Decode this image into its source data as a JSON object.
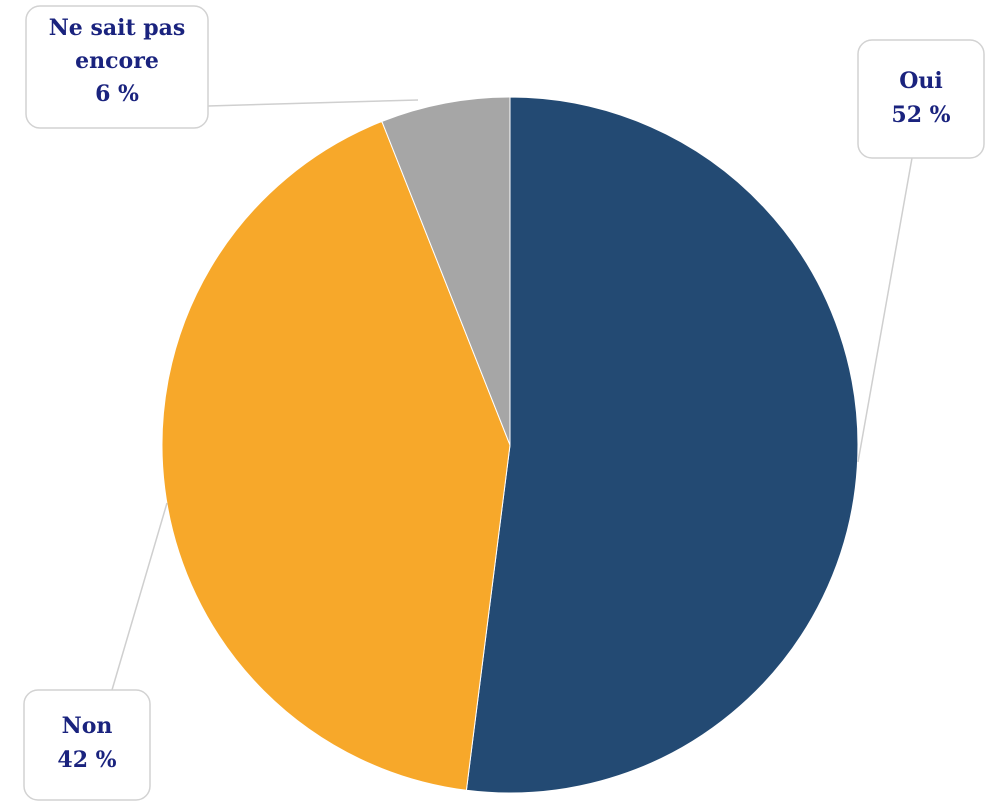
{
  "chart_data": {
    "type": "pie",
    "title": "",
    "start_angle_deg": 0,
    "direction": "clockwise",
    "slices": [
      {
        "label": "Oui",
        "value": 52,
        "display": "52 %",
        "color": "#234a73"
      },
      {
        "label": "Non",
        "value": 42,
        "display": "42 %",
        "color": "#f7a82a"
      },
      {
        "label": "Ne sait pas encore",
        "label_lines": [
          "Ne sait pas",
          "encore"
        ],
        "value": 6,
        "display": "6 %",
        "color": "#a6a6a6"
      }
    ],
    "data_labels": "callouts",
    "legend": "none"
  }
}
